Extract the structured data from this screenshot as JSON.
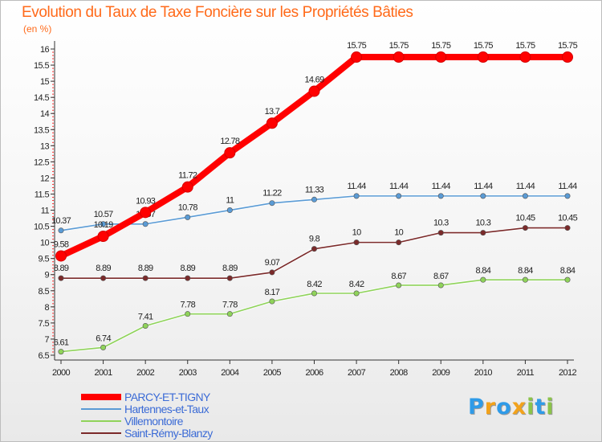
{
  "header": {
    "title": "Evolution du Taux de Taxe Foncière sur les Propriétés Bâties",
    "subtitle": "(en %)"
  },
  "logo": {
    "letters": [
      "P",
      "r",
      "o",
      "x",
      "i",
      "t",
      "i"
    ],
    "colors": [
      "#2f9be8",
      "#f2a21b",
      "#2f9be8",
      "#f2a21b",
      "#8bc34a",
      "#2f9be8",
      "#8bc34a"
    ]
  },
  "chart_data": {
    "type": "line",
    "x": [
      "2000",
      "2001",
      "2002",
      "2003",
      "2004",
      "2005",
      "2006",
      "2007",
      "2008",
      "2009",
      "2010",
      "2011",
      "2012"
    ],
    "ylim": [
      6.5,
      16
    ],
    "yticks": [
      "6.5",
      "7",
      "7.5",
      "8",
      "8.5",
      "9",
      "9.5",
      "10",
      "10.5",
      "11",
      "11.5",
      "12",
      "12.5",
      "13",
      "13.5",
      "14",
      "14.5",
      "15",
      "15.5",
      "16"
    ],
    "grid": false,
    "legend_position": "bottom-left",
    "series": [
      {
        "name": "PARCY-ET-TIGNY",
        "color": "#ff0000",
        "values": [
          9.58,
          10.19,
          10.93,
          11.72,
          12.78,
          13.7,
          14.69,
          15.75,
          15.75,
          15.75,
          15.75,
          15.75,
          15.75
        ],
        "labels": [
          "9.58",
          "10.19",
          "10.93",
          "11.72",
          "12.78",
          "13.7",
          "14.69",
          "15.75",
          "15.75",
          "15.75",
          "15.75",
          "15.75",
          "15.75"
        ]
      },
      {
        "name": "Hartennes-et-Taux",
        "color": "#5a9bd5",
        "values": [
          10.37,
          10.57,
          10.57,
          10.78,
          11,
          11.22,
          11.33,
          11.44,
          11.44,
          11.44,
          11.44,
          11.44,
          11.44
        ],
        "labels": [
          "10.37",
          "10.57",
          "10.57",
          "10.78",
          "11",
          "11.22",
          "11.33",
          "11.44",
          "11.44",
          "11.44",
          "11.44",
          "11.44",
          "11.44"
        ]
      },
      {
        "name": "Villemontoire",
        "color": "#8fd35a",
        "values": [
          6.61,
          6.74,
          7.41,
          7.78,
          7.78,
          8.17,
          8.42,
          8.42,
          8.67,
          8.67,
          8.84,
          8.84,
          8.84
        ],
        "labels": [
          "6.61",
          "6.74",
          "7.41",
          "7.78",
          "7.78",
          "8.17",
          "8.42",
          "8.42",
          "8.67",
          "8.67",
          "8.84",
          "8.84",
          "8.84"
        ]
      },
      {
        "name": "Saint-Rémy-Blanzy",
        "color": "#7b2a2a",
        "values": [
          8.89,
          8.89,
          8.89,
          8.89,
          8.89,
          9.07,
          9.8,
          10,
          10,
          10.3,
          10.3,
          10.45,
          10.45
        ],
        "labels": [
          "8.89",
          "8.89",
          "8.89",
          "8.89",
          "8.89",
          "9.07",
          "9.8",
          "10",
          "10",
          "10.3",
          "10.3",
          "10.45",
          "10.45"
        ]
      }
    ]
  }
}
